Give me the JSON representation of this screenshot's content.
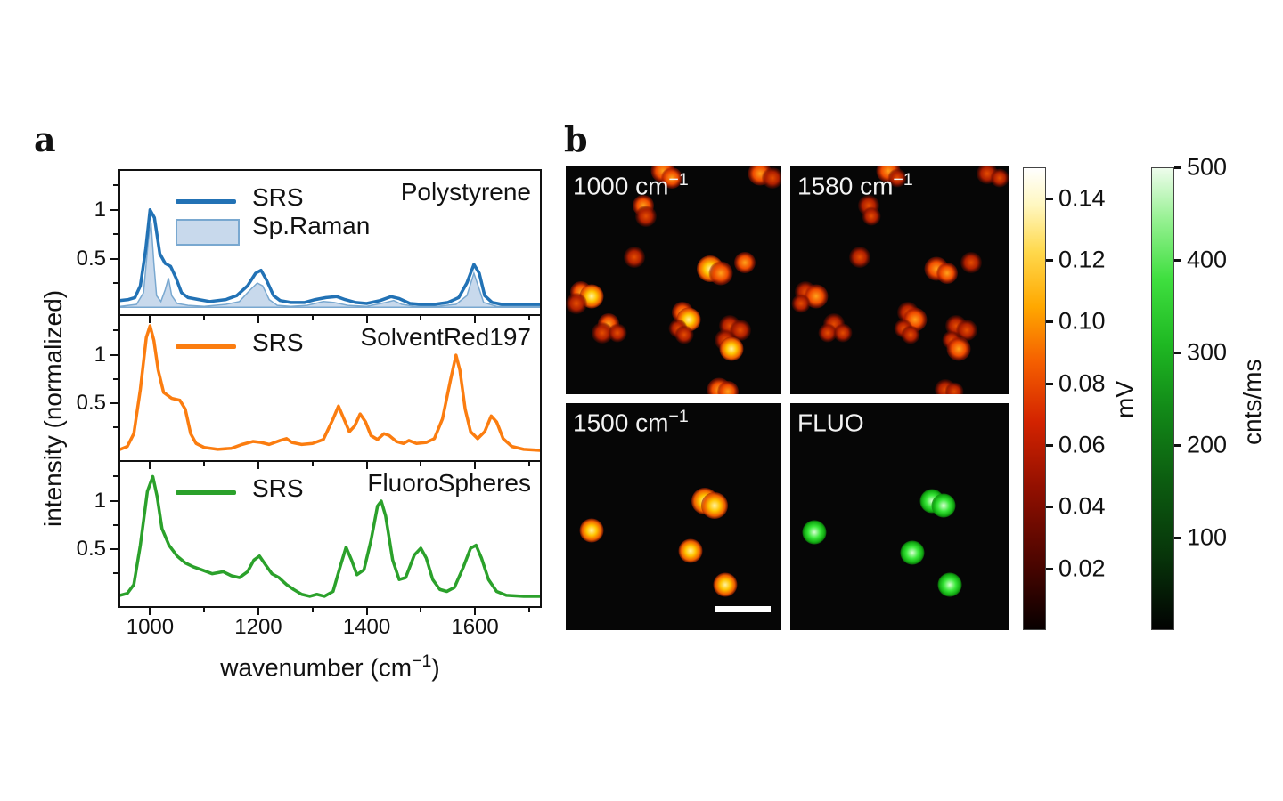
{
  "panel_a": {
    "label": "a",
    "ylabel": "intensity (normalized)",
    "xlabel_base": "wavenumber (cm",
    "xlabel_sup": "−1",
    "xlabel_close": ")",
    "subplots": [
      {
        "name": "Polystyrene",
        "legend": [
          "SRS",
          "Sp.Raman"
        ]
      },
      {
        "name": "SolventRed197",
        "legend": [
          "SRS"
        ]
      },
      {
        "name": "FluoroSpheres",
        "legend": [
          "SRS"
        ]
      }
    ]
  },
  "chart_data": [
    {
      "type": "line",
      "title": "Polystyrene",
      "xlabel": "wavenumber (cm-1)",
      "ylabel": "intensity (normalized)",
      "xlim": [
        945,
        1720
      ],
      "ylim": [
        -0.07,
        1.4
      ],
      "x_ticks": [
        1000,
        1200,
        1400,
        1600
      ],
      "x_minor_ticks": [
        1100,
        1300,
        1500,
        1700
      ],
      "y_ticks": [
        1,
        0.5
      ],
      "y_minor_ticks": [
        1.25,
        0.75,
        0.25
      ],
      "series": [
        {
          "name": "SRS",
          "style": "line",
          "color": "#2272b5",
          "x": [
            945,
            960,
            972,
            982,
            992,
            1000,
            1008,
            1018,
            1028,
            1038,
            1048,
            1058,
            1070,
            1090,
            1110,
            1140,
            1160,
            1180,
            1195,
            1205,
            1215,
            1228,
            1240,
            1260,
            1285,
            1305,
            1325,
            1345,
            1360,
            1380,
            1400,
            1425,
            1445,
            1460,
            1480,
            1500,
            1525,
            1550,
            1570,
            1585,
            1598,
            1608,
            1618,
            1632,
            1650,
            1680,
            1720
          ],
          "y": [
            0.07,
            0.08,
            0.1,
            0.22,
            0.6,
            1.0,
            0.92,
            0.55,
            0.45,
            0.42,
            0.3,
            0.15,
            0.1,
            0.08,
            0.06,
            0.08,
            0.12,
            0.22,
            0.35,
            0.38,
            0.28,
            0.12,
            0.07,
            0.05,
            0.05,
            0.08,
            0.1,
            0.11,
            0.08,
            0.05,
            0.04,
            0.07,
            0.11,
            0.09,
            0.04,
            0.03,
            0.03,
            0.05,
            0.1,
            0.25,
            0.44,
            0.35,
            0.12,
            0.05,
            0.03,
            0.03,
            0.03
          ]
        },
        {
          "name": "Sp.Raman",
          "style": "area",
          "color": "#c8d9ec",
          "edge": "#79a8d0",
          "x": [
            945,
            975,
            988,
            997,
            1002,
            1007,
            1012,
            1020,
            1028,
            1034,
            1040,
            1050,
            1070,
            1100,
            1140,
            1165,
            1185,
            1198,
            1208,
            1220,
            1235,
            1260,
            1290,
            1320,
            1340,
            1365,
            1400,
            1435,
            1450,
            1465,
            1490,
            1530,
            1565,
            1585,
            1598,
            1606,
            1616,
            1640,
            1680,
            1720
          ],
          "y": [
            0.01,
            0.03,
            0.15,
            0.7,
            0.86,
            0.45,
            0.12,
            0.06,
            0.18,
            0.3,
            0.12,
            0.04,
            0.02,
            0.01,
            0.03,
            0.06,
            0.18,
            0.25,
            0.22,
            0.08,
            0.02,
            0.01,
            0.02,
            0.06,
            0.05,
            0.02,
            0.01,
            0.05,
            0.07,
            0.03,
            0.01,
            0.01,
            0.03,
            0.12,
            0.35,
            0.22,
            0.05,
            0.01,
            0.01,
            0.01
          ]
        }
      ]
    },
    {
      "type": "line",
      "title": "SolventRed197",
      "xlabel": "wavenumber (cm-1)",
      "ylabel": "intensity (normalized)",
      "xlim": [
        945,
        1720
      ],
      "ylim": [
        -0.07,
        1.4
      ],
      "x_ticks": [
        1000,
        1200,
        1400,
        1600
      ],
      "y_ticks": [
        1,
        0.5
      ],
      "series": [
        {
          "name": "SRS",
          "style": "line",
          "color": "#fb7d10",
          "x": [
            945,
            958,
            970,
            982,
            993,
            1000,
            1007,
            1015,
            1025,
            1040,
            1055,
            1065,
            1075,
            1085,
            1100,
            1125,
            1150,
            1170,
            1190,
            1205,
            1220,
            1240,
            1252,
            1262,
            1280,
            1300,
            1320,
            1338,
            1348,
            1358,
            1368,
            1378,
            1388,
            1398,
            1408,
            1420,
            1432,
            1442,
            1455,
            1468,
            1478,
            1492,
            1510,
            1525,
            1540,
            1555,
            1565,
            1572,
            1582,
            1592,
            1605,
            1618,
            1630,
            1640,
            1652,
            1668,
            1690,
            1720
          ],
          "y": [
            0.04,
            0.07,
            0.2,
            0.65,
            1.18,
            1.3,
            1.15,
            0.85,
            0.62,
            0.56,
            0.54,
            0.45,
            0.2,
            0.1,
            0.06,
            0.04,
            0.05,
            0.09,
            0.12,
            0.11,
            0.09,
            0.13,
            0.15,
            0.11,
            0.09,
            0.1,
            0.14,
            0.35,
            0.48,
            0.35,
            0.22,
            0.28,
            0.4,
            0.32,
            0.18,
            0.14,
            0.2,
            0.18,
            0.12,
            0.1,
            0.13,
            0.1,
            0.11,
            0.15,
            0.35,
            0.75,
            1.0,
            0.85,
            0.45,
            0.22,
            0.15,
            0.22,
            0.38,
            0.32,
            0.15,
            0.07,
            0.04,
            0.03
          ]
        }
      ]
    },
    {
      "type": "line",
      "title": "FluoroSpheres",
      "xlabel": "wavenumber (cm-1)",
      "ylabel": "intensity (normalized)",
      "xlim": [
        945,
        1720
      ],
      "ylim": [
        -0.07,
        1.4
      ],
      "x_ticks": [
        1000,
        1200,
        1400,
        1600
      ],
      "y_ticks": [
        1,
        0.5
      ],
      "series": [
        {
          "name": "SRS",
          "style": "line",
          "color": "#2ba12b",
          "x": [
            945,
            958,
            970,
            982,
            995,
            1005,
            1013,
            1022,
            1035,
            1050,
            1065,
            1080,
            1095,
            1115,
            1135,
            1150,
            1165,
            1180,
            1192,
            1202,
            1212,
            1225,
            1238,
            1252,
            1265,
            1280,
            1295,
            1308,
            1322,
            1338,
            1352,
            1362,
            1372,
            1382,
            1395,
            1408,
            1420,
            1427,
            1435,
            1448,
            1460,
            1472,
            1488,
            1500,
            1510,
            1522,
            1535,
            1548,
            1562,
            1578,
            1592,
            1602,
            1612,
            1625,
            1640,
            1658,
            1690,
            1720
          ],
          "y": [
            0.04,
            0.06,
            0.15,
            0.55,
            1.1,
            1.25,
            1.05,
            0.72,
            0.55,
            0.44,
            0.37,
            0.33,
            0.3,
            0.26,
            0.28,
            0.24,
            0.22,
            0.28,
            0.4,
            0.44,
            0.36,
            0.26,
            0.22,
            0.15,
            0.1,
            0.05,
            0.03,
            0.05,
            0.03,
            0.08,
            0.35,
            0.53,
            0.4,
            0.25,
            0.3,
            0.6,
            0.95,
            1.0,
            0.85,
            0.4,
            0.2,
            0.22,
            0.45,
            0.52,
            0.42,
            0.2,
            0.1,
            0.08,
            0.12,
            0.32,
            0.52,
            0.55,
            0.42,
            0.2,
            0.08,
            0.04,
            0.03,
            0.03
          ]
        }
      ]
    }
  ],
  "panel_b": {
    "label": "b",
    "images": [
      {
        "title": "1000 cm",
        "sup": "−1",
        "blobs": [
          [
            0.45,
            0.02,
            9,
            "mid"
          ],
          [
            0.49,
            0.05,
            8,
            "mid"
          ],
          [
            0.9,
            0.03,
            9,
            "mid"
          ],
          [
            0.96,
            0.05,
            8,
            "dim"
          ],
          [
            0.36,
            0.17,
            8,
            "mid"
          ],
          [
            0.37,
            0.22,
            8,
            "dim"
          ],
          [
            0.32,
            0.4,
            8,
            "dim"
          ],
          [
            0.67,
            0.45,
            10,
            "bright"
          ],
          [
            0.72,
            0.47,
            9,
            "mid"
          ],
          [
            0.83,
            0.42,
            8,
            "mid"
          ],
          [
            0.07,
            0.55,
            8,
            "mid"
          ],
          [
            0.12,
            0.57,
            9,
            "bright"
          ],
          [
            0.05,
            0.6,
            8,
            "dim"
          ],
          [
            0.2,
            0.69,
            8,
            "mid"
          ],
          [
            0.17,
            0.73,
            8,
            "dim"
          ],
          [
            0.24,
            0.73,
            7,
            "dim"
          ],
          [
            0.54,
            0.64,
            8,
            "mid"
          ],
          [
            0.57,
            0.67,
            9,
            "bright"
          ],
          [
            0.52,
            0.71,
            7,
            "dim"
          ],
          [
            0.55,
            0.74,
            7,
            "dim"
          ],
          [
            0.76,
            0.7,
            8,
            "dim"
          ],
          [
            0.81,
            0.72,
            8,
            "dim"
          ],
          [
            0.74,
            0.76,
            8,
            "dim"
          ],
          [
            0.77,
            0.8,
            9,
            "bright"
          ],
          [
            0.71,
            0.98,
            9,
            "mid"
          ],
          [
            0.75,
            0.99,
            8,
            "mid"
          ]
        ]
      },
      {
        "title": "1580 cm",
        "sup": "−1",
        "blobs": [
          [
            0.45,
            0.02,
            9,
            "mid"
          ],
          [
            0.49,
            0.05,
            7,
            "dim"
          ],
          [
            0.9,
            0.03,
            8,
            "dim"
          ],
          [
            0.96,
            0.05,
            7,
            "dim"
          ],
          [
            0.36,
            0.17,
            8,
            "dim"
          ],
          [
            0.37,
            0.22,
            7,
            "dim"
          ],
          [
            0.32,
            0.4,
            8,
            "dim"
          ],
          [
            0.67,
            0.45,
            9,
            "mid"
          ],
          [
            0.72,
            0.47,
            8,
            "mid"
          ],
          [
            0.83,
            0.42,
            8,
            "dim"
          ],
          [
            0.07,
            0.55,
            8,
            "dim"
          ],
          [
            0.12,
            0.57,
            9,
            "mid"
          ],
          [
            0.05,
            0.6,
            7,
            "dim"
          ],
          [
            0.2,
            0.69,
            8,
            "dim"
          ],
          [
            0.17,
            0.73,
            7,
            "dim"
          ],
          [
            0.24,
            0.73,
            7,
            "dim"
          ],
          [
            0.54,
            0.64,
            8,
            "dim"
          ],
          [
            0.57,
            0.67,
            9,
            "mid"
          ],
          [
            0.52,
            0.71,
            7,
            "dim"
          ],
          [
            0.55,
            0.74,
            7,
            "dim"
          ],
          [
            0.76,
            0.7,
            8,
            "dim"
          ],
          [
            0.81,
            0.72,
            8,
            "dim"
          ],
          [
            0.74,
            0.76,
            7,
            "dim"
          ],
          [
            0.77,
            0.8,
            9,
            "mid"
          ],
          [
            0.71,
            0.98,
            8,
            "dim"
          ],
          [
            0.75,
            0.99,
            7,
            "dim"
          ]
        ]
      },
      {
        "title": "1500 cm",
        "sup": "−1",
        "scalebar": true,
        "blobs": [
          [
            0.645,
            0.43,
            10,
            "bright"
          ],
          [
            0.69,
            0.45,
            10,
            "bright"
          ],
          [
            0.12,
            0.56,
            9,
            "bright"
          ],
          [
            0.58,
            0.65,
            9,
            "bright"
          ],
          [
            0.74,
            0.8,
            9,
            "bright"
          ]
        ]
      },
      {
        "title": "FLUO",
        "sup": "",
        "blobs": [
          [
            0.65,
            0.43,
            9,
            "green"
          ],
          [
            0.7,
            0.45,
            9,
            "green"
          ],
          [
            0.11,
            0.57,
            9,
            "green"
          ],
          [
            0.56,
            0.66,
            9,
            "green"
          ],
          [
            0.73,
            0.8,
            9,
            "green"
          ]
        ]
      }
    ],
    "colorbars": [
      {
        "label": "mV",
        "type": "hot",
        "vmin": 0,
        "vmax": 0.15,
        "ticks": [
          "0.14",
          "0.12",
          "0.10",
          "0.08",
          "0.06",
          "0.04",
          "0.02"
        ]
      },
      {
        "label": "cnts/ms",
        "type": "green",
        "vmin": 0,
        "vmax": 500,
        "ticks": [
          "500",
          "400",
          "300",
          "200",
          "100"
        ]
      }
    ]
  }
}
